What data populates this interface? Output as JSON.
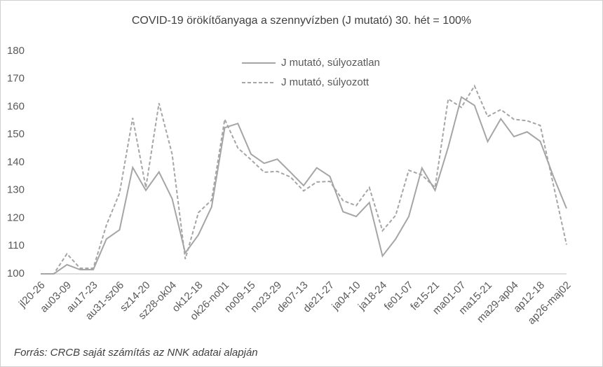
{
  "chart_data": {
    "type": "line",
    "title": "COVID-19 örökítőanyaga a szennyvízben (J mutató) 30. hét = 100%",
    "source": "Forrás: CRCB saját számítás az NNK adatai alapján",
    "categories": [
      "jl20-26",
      null,
      "au03-09",
      null,
      "au17-23",
      null,
      "au31-sz06",
      null,
      "sz14-20",
      null,
      "sz28-ok04",
      null,
      "ok12-18",
      null,
      "ok26-no01",
      null,
      "no09-15",
      null,
      "no23-29",
      null,
      "de07-13",
      null,
      "de21-27",
      null,
      "ja04-10",
      null,
      "ja18-24",
      null,
      "fe01-07",
      null,
      "fe15-21",
      null,
      "ma01-07",
      null,
      "ma15-21",
      null,
      "ma29-ap04",
      null,
      "ap12-18",
      null,
      "ap26-maj02"
    ],
    "series": [
      {
        "name": "J mutató, súlyozatlan",
        "color": "#a5a5a5",
        "dash": false,
        "values": [
          100,
          100,
          103.3,
          101.5,
          101.5,
          112.5,
          115.8,
          138.2,
          130,
          136.6,
          127,
          107.5,
          114,
          124,
          152.5,
          154,
          143,
          139.7,
          141.2,
          136.5,
          131.7,
          138.1,
          135,
          122.3,
          120.6,
          125.6,
          106.4,
          112.5,
          120.6,
          138,
          130,
          145.5,
          163.5,
          160.5,
          147.5,
          155.7,
          149.3,
          151,
          147.6,
          135,
          123.5
        ]
      },
      {
        "name": "J mutató, súlyozott",
        "color": "#a5a5a5",
        "dash": true,
        "values": [
          100,
          100,
          107.2,
          102,
          102,
          117.5,
          129,
          156,
          131,
          161.3,
          143,
          105.3,
          122,
          126.5,
          155.5,
          145.2,
          141,
          136.5,
          136.8,
          134.8,
          129.8,
          133,
          133.2,
          126.3,
          124.5,
          131,
          115.5,
          121,
          137.2,
          135.5,
          131,
          162.8,
          159.8,
          167.5,
          156.5,
          159,
          155.5,
          155,
          153.3,
          132,
          110.5
        ]
      }
    ],
    "ylim": [
      100,
      180
    ],
    "yticks": [
      100,
      110,
      120,
      130,
      140,
      150,
      160,
      170,
      180
    ],
    "grid": false
  }
}
